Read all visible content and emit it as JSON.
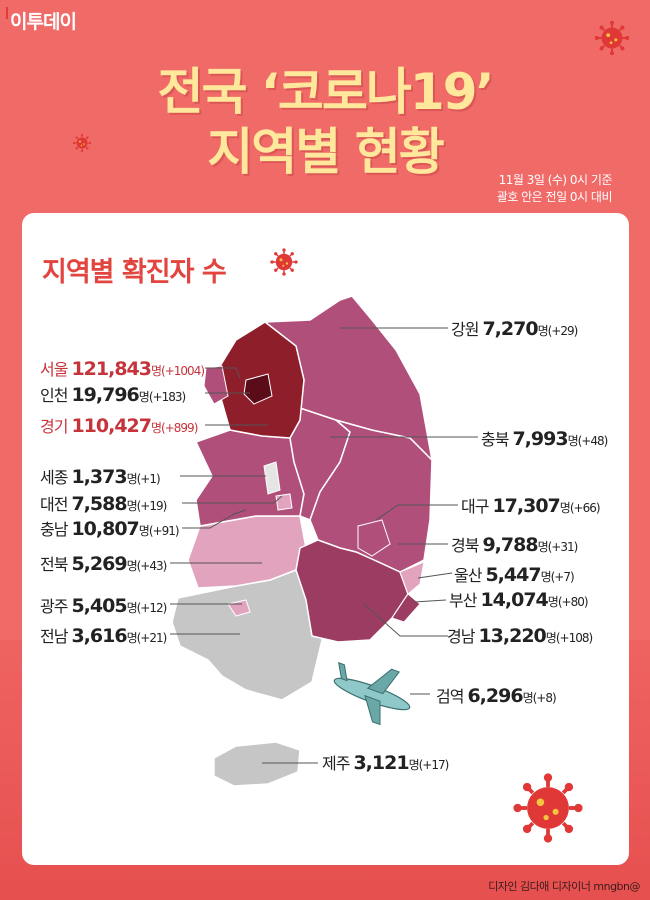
{
  "brand": "이투데이",
  "title": {
    "line1": "전국 ‘코로나19’",
    "line2": "지역별 현황"
  },
  "basis": {
    "line1": "11월 3일 (수) 0시 기준",
    "line2": "괄호 안은 전일 0시 대비"
  },
  "section_title": "지역별 확진자 수",
  "unit": "명",
  "regions": [
    {
      "name": "강원",
      "count": "7,270",
      "diff": "(+29)"
    },
    {
      "name": "서울",
      "count": "121,843",
      "diff": "(+1004)"
    },
    {
      "name": "인천",
      "count": "19,796",
      "diff": "(+183)"
    },
    {
      "name": "경기",
      "count": "110,427",
      "diff": "(+899)"
    },
    {
      "name": "충북",
      "count": "7,993",
      "diff": "(+48)"
    },
    {
      "name": "세종",
      "count": "1,373",
      "diff": "(+1)"
    },
    {
      "name": "대전",
      "count": "7,588",
      "diff": "(+19)"
    },
    {
      "name": "대구",
      "count": "17,307",
      "diff": "(+66)"
    },
    {
      "name": "충남",
      "count": "10,807",
      "diff": "(+91)"
    },
    {
      "name": "경북",
      "count": "9,788",
      "diff": "(+31)"
    },
    {
      "name": "전북",
      "count": "5,269",
      "diff": "(+43)"
    },
    {
      "name": "울산",
      "count": "5,447",
      "diff": "(+7)"
    },
    {
      "name": "광주",
      "count": "5,405",
      "diff": "(+12)"
    },
    {
      "name": "부산",
      "count": "14,074",
      "diff": "(+80)"
    },
    {
      "name": "전남",
      "count": "3,616",
      "diff": "(+21)"
    },
    {
      "name": "경남",
      "count": "13,220",
      "diff": "(+108)"
    },
    {
      "name": "검역",
      "count": "6,296",
      "diff": "(+8)"
    },
    {
      "name": "제주",
      "count": "3,121",
      "diff": "(+17)"
    }
  ],
  "credit": "디자인 김다애 디자이너 mngbn@",
  "colors": {
    "background": "#f06a68",
    "title": "#ffe79c",
    "section_title": "#e2443f",
    "highlight": "#c7333b"
  },
  "icons": [
    "virus-icon",
    "airplane-icon"
  ]
}
